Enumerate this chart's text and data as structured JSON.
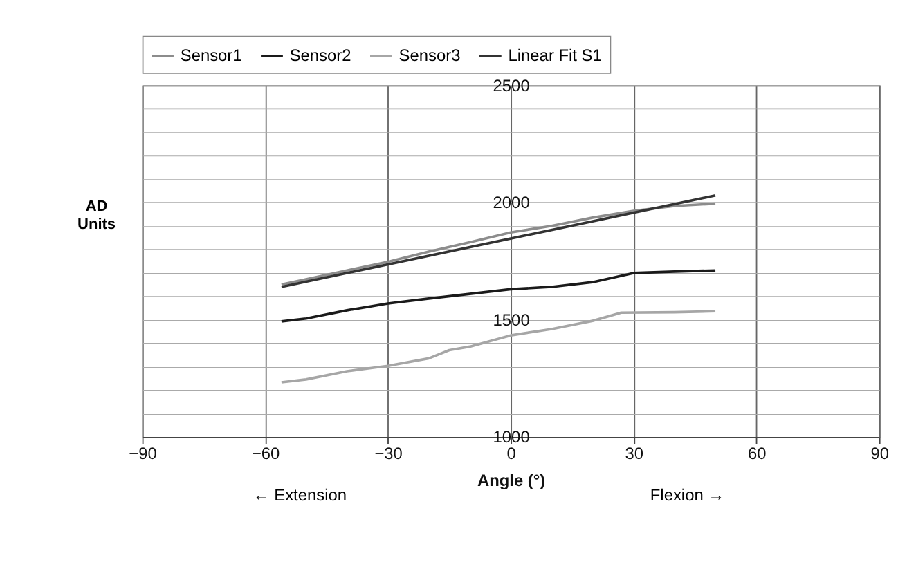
{
  "chart_data": {
    "type": "line",
    "xlabel": "Angle (°)",
    "ylabel": "AD Units",
    "annotations": [
      "← Extension",
      "Flexion →"
    ],
    "xlim": [
      -90,
      90
    ],
    "xticks": [
      {
        "value": -90,
        "label": "−90"
      },
      {
        "value": -60,
        "label": "−60"
      },
      {
        "value": -30,
        "label": "−30"
      },
      0,
      30,
      60,
      90
    ],
    "ylim": [
      1000,
      2500
    ],
    "yticks": [
      1000,
      {
        "value": 1100,
        "label": null
      },
      {
        "value": 1200,
        "label": null
      },
      {
        "value": 1300,
        "label": null
      },
      {
        "value": 1400,
        "label": null
      },
      1500,
      {
        "value": 1600,
        "label": null
      },
      {
        "value": 1700,
        "label": null
      },
      {
        "value": 1800,
        "label": null
      },
      {
        "value": 1900,
        "label": null
      },
      2000,
      {
        "value": 2100,
        "label": null
      },
      {
        "value": 2200,
        "label": null
      },
      {
        "value": 2300,
        "label": null
      },
      {
        "value": 2400,
        "label": null
      },
      2500
    ],
    "grid": true,
    "legend": "top",
    "marker": "none",
    "line_style": "solid",
    "series": [
      {
        "name": "Sensor1",
        "color": "#8c8c8c",
        "x": [
          -56,
          -50,
          -40,
          -30,
          -20,
          -10,
          0,
          10,
          20,
          30,
          40,
          50
        ],
        "values": [
          1650,
          1672,
          1710,
          1747,
          1790,
          1830,
          1872,
          1900,
          1935,
          1964,
          1985,
          1995
        ]
      },
      {
        "name": "Sensor2",
        "color": "#1a1a1a",
        "x": [
          -56,
          -50,
          -40,
          -30,
          -20,
          -10,
          0,
          10,
          20,
          30,
          40,
          50
        ],
        "values": [
          1493,
          1505,
          1540,
          1569,
          1590,
          1610,
          1630,
          1640,
          1660,
          1699,
          1705,
          1710
        ]
      },
      {
        "name": "Sensor3",
        "color": "#a6a6a6",
        "x": [
          -56,
          -50,
          -40,
          -30,
          -20,
          -15,
          -10,
          0,
          10,
          20,
          27,
          40,
          50
        ],
        "values": [
          1233,
          1245,
          1280,
          1303,
          1335,
          1370,
          1385,
          1433,
          1460,
          1495,
          1530,
          1532,
          1536
        ]
      },
      {
        "name": "Linear Fit S1",
        "color": "#333333",
        "x": [
          -56,
          50
        ],
        "values": [
          1640,
          2030
        ]
      }
    ]
  }
}
